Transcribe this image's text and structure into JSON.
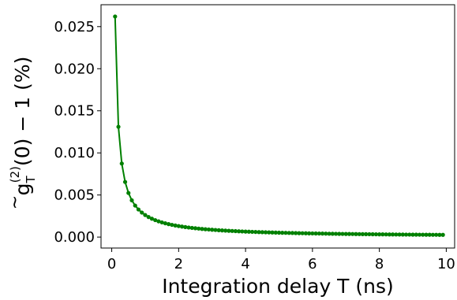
{
  "chart_data": {
    "type": "line",
    "title": "",
    "xlabel": "Integration delay T (ns)",
    "ylabel": {
      "base": "g",
      "accent": "~",
      "superscript": "(2)",
      "subscript": "T",
      "rest": "(0) − 1 (%)"
    },
    "xlim": [
      -0.32,
      10.25
    ],
    "ylim": [
      -0.0013,
      0.0276
    ],
    "xticks": [
      0,
      2,
      4,
      6,
      8,
      10
    ],
    "xtick_labels": [
      "0",
      "2",
      "4",
      "6",
      "8",
      "10"
    ],
    "yticks": [
      0.0,
      0.005,
      0.01,
      0.015,
      0.02,
      0.025
    ],
    "ytick_labels": [
      "0.000",
      "0.005",
      "0.010",
      "0.015",
      "0.020",
      "0.025"
    ],
    "grid": false,
    "legend": "none",
    "series": [
      {
        "color": "#008000",
        "marker": "circle",
        "model": "y = A / T",
        "A": 0.00262,
        "x_start": 0.1,
        "x_end": 9.9,
        "x_step": 0.1
      }
    ]
  }
}
